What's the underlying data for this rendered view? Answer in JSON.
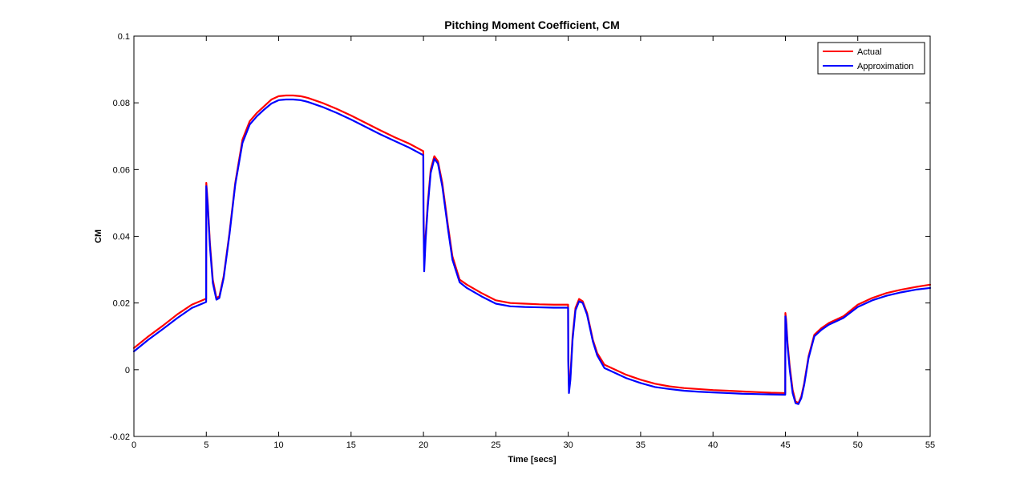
{
  "chart_data": {
    "type": "line",
    "title": "Pitching Moment Coefficient, CM",
    "xlabel": "Time [secs]",
    "ylabel": "CM",
    "xlim": [
      0,
      55
    ],
    "ylim": [
      -0.02,
      0.1
    ],
    "xticks": [
      0,
      5,
      10,
      15,
      20,
      25,
      30,
      35,
      40,
      45,
      50,
      55
    ],
    "xtick_labels": [
      "0",
      "5",
      "10",
      "15",
      "20",
      "25",
      "30",
      "35",
      "40",
      "45",
      "50",
      "55"
    ],
    "yticks": [
      -0.02,
      0,
      0.02,
      0.04,
      0.06,
      0.08,
      0.1
    ],
    "ytick_labels": [
      "-0.02",
      "0",
      "0.02",
      "0.04",
      "0.06",
      "0.08",
      "0.1"
    ],
    "grid": false,
    "legend_position": "top-right",
    "series": [
      {
        "name": "Actual",
        "color": "#ff0000",
        "x": [
          0,
          1,
          2,
          3,
          4,
          4.99,
          5.0,
          5.1,
          5.25,
          5.45,
          5.7,
          5.9,
          6.2,
          6.6,
          7.0,
          7.5,
          8.0,
          8.5,
          9.0,
          9.5,
          10.0,
          10.5,
          11.0,
          11.5,
          12.0,
          13.0,
          14.0,
          15.0,
          16.0,
          17.0,
          18.0,
          19.0,
          19.99,
          20.0,
          20.05,
          20.15,
          20.3,
          20.5,
          20.75,
          21.0,
          21.3,
          21.7,
          22.0,
          22.5,
          23.0,
          24.0,
          25.0,
          26.0,
          27.0,
          28.0,
          29.0,
          29.99,
          30.0,
          30.05,
          30.15,
          30.3,
          30.5,
          30.75,
          31.0,
          31.3,
          31.7,
          32.0,
          32.5,
          33.0,
          34.0,
          35.0,
          36.0,
          37.0,
          38.0,
          39.0,
          40.0,
          41.0,
          42.0,
          43.0,
          44.0,
          44.99,
          45.0,
          45.05,
          45.15,
          45.3,
          45.5,
          45.7,
          45.9,
          46.1,
          46.3,
          46.6,
          47.0,
          47.5,
          48.0,
          49.0,
          50.0,
          51.0,
          52.0,
          53.0,
          54.0,
          55.0
        ],
        "y": [
          0.0065,
          0.01,
          0.0132,
          0.0166,
          0.0195,
          0.0213,
          0.056,
          0.05,
          0.038,
          0.027,
          0.0215,
          0.022,
          0.028,
          0.041,
          0.056,
          0.069,
          0.0745,
          0.077,
          0.079,
          0.081,
          0.082,
          0.0822,
          0.0822,
          0.082,
          0.0815,
          0.08,
          0.0782,
          0.0762,
          0.074,
          0.0718,
          0.0697,
          0.0678,
          0.0655,
          0.048,
          0.035,
          0.04,
          0.05,
          0.06,
          0.064,
          0.0625,
          0.056,
          0.043,
          0.034,
          0.027,
          0.0255,
          0.023,
          0.0208,
          0.02,
          0.0198,
          0.0196,
          0.0195,
          0.0195,
          0.005,
          -0.005,
          -0.002,
          0.01,
          0.0185,
          0.0212,
          0.0205,
          0.017,
          0.009,
          0.005,
          0.0015,
          0.0005,
          -0.0015,
          -0.003,
          -0.0042,
          -0.005,
          -0.0055,
          -0.0058,
          -0.0061,
          -0.0063,
          -0.0065,
          -0.0067,
          -0.0069,
          -0.007,
          0.017,
          0.015,
          0.008,
          0.001,
          -0.006,
          -0.0095,
          -0.01,
          -0.008,
          -0.004,
          0.004,
          0.0105,
          0.0125,
          0.014,
          0.016,
          0.0195,
          0.0215,
          0.023,
          0.024,
          0.0248,
          0.0255
        ]
      },
      {
        "name": "Approximation",
        "color": "#0000ff",
        "x": [
          0,
          1,
          2,
          3,
          4,
          4.99,
          5.0,
          5.1,
          5.25,
          5.45,
          5.7,
          5.9,
          6.2,
          6.6,
          7.0,
          7.5,
          8.0,
          8.5,
          9.0,
          9.5,
          10.0,
          10.5,
          11.0,
          11.5,
          12.0,
          13.0,
          14.0,
          15.0,
          16.0,
          17.0,
          18.0,
          19.0,
          19.99,
          20.0,
          20.05,
          20.15,
          20.3,
          20.5,
          20.75,
          21.0,
          21.3,
          21.7,
          22.0,
          22.5,
          23.0,
          24.0,
          25.0,
          26.0,
          27.0,
          28.0,
          29.0,
          29.99,
          30.0,
          30.05,
          30.15,
          30.3,
          30.5,
          30.75,
          31.0,
          31.3,
          31.7,
          32.0,
          32.5,
          33.0,
          34.0,
          35.0,
          36.0,
          37.0,
          38.0,
          39.0,
          40.0,
          41.0,
          42.0,
          43.0,
          44.0,
          44.99,
          45.0,
          45.05,
          45.15,
          45.3,
          45.5,
          45.7,
          45.9,
          46.1,
          46.3,
          46.6,
          47.0,
          47.5,
          48.0,
          49.0,
          50.0,
          51.0,
          52.0,
          53.0,
          54.0,
          55.0
        ],
        "y": [
          0.0055,
          0.009,
          0.0122,
          0.0155,
          0.0185,
          0.0203,
          0.055,
          0.049,
          0.037,
          0.026,
          0.021,
          0.0215,
          0.0275,
          0.0405,
          0.0555,
          0.068,
          0.0735,
          0.076,
          0.078,
          0.0798,
          0.0808,
          0.081,
          0.081,
          0.0808,
          0.0803,
          0.0788,
          0.077,
          0.075,
          0.0728,
          0.0706,
          0.0686,
          0.0666,
          0.0643,
          0.047,
          0.0295,
          0.039,
          0.049,
          0.059,
          0.0632,
          0.0618,
          0.055,
          0.042,
          0.033,
          0.0262,
          0.0245,
          0.022,
          0.0198,
          0.019,
          0.0188,
          0.0187,
          0.0186,
          0.0186,
          0.003,
          -0.007,
          -0.003,
          0.009,
          0.0178,
          0.0205,
          0.02,
          0.0165,
          0.0085,
          0.0043,
          0.0005,
          -0.0005,
          -0.0025,
          -0.004,
          -0.0052,
          -0.0058,
          -0.0063,
          -0.0066,
          -0.0068,
          -0.007,
          -0.0072,
          -0.0073,
          -0.0074,
          -0.0075,
          0.016,
          0.014,
          0.007,
          0.0,
          -0.007,
          -0.01,
          -0.0103,
          -0.0085,
          -0.0045,
          0.0035,
          0.01,
          0.012,
          0.0135,
          0.0155,
          0.0188,
          0.0208,
          0.0222,
          0.0232,
          0.024,
          0.0245
        ]
      }
    ]
  }
}
